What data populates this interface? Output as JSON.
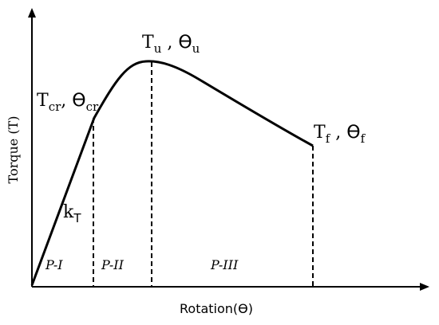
{
  "diagram": {
    "axes": {
      "x_label": "Rotation(ϴ)",
      "y_label": "Torque (T)"
    },
    "points": {
      "cracking": {
        "symbol_T": "T",
        "sub_T": "cr",
        "symbol_theta": "ϴ",
        "sub_theta": "cr"
      },
      "ultimate": {
        "symbol_T": "T",
        "sub_T": "u",
        "sep": " , ",
        "symbol_theta": "ϴ",
        "sub_theta": "u"
      },
      "failure": {
        "symbol_T": "T",
        "sub_T": "f",
        "sep": " , ",
        "symbol_theta": "ϴ",
        "sub_theta": "f"
      }
    },
    "stiffness": {
      "symbol": "k",
      "sub": "T"
    },
    "phases": [
      "P-I",
      "P-II",
      "P-III"
    ],
    "colors": {
      "line": "#000000",
      "background": "#ffffff"
    }
  }
}
